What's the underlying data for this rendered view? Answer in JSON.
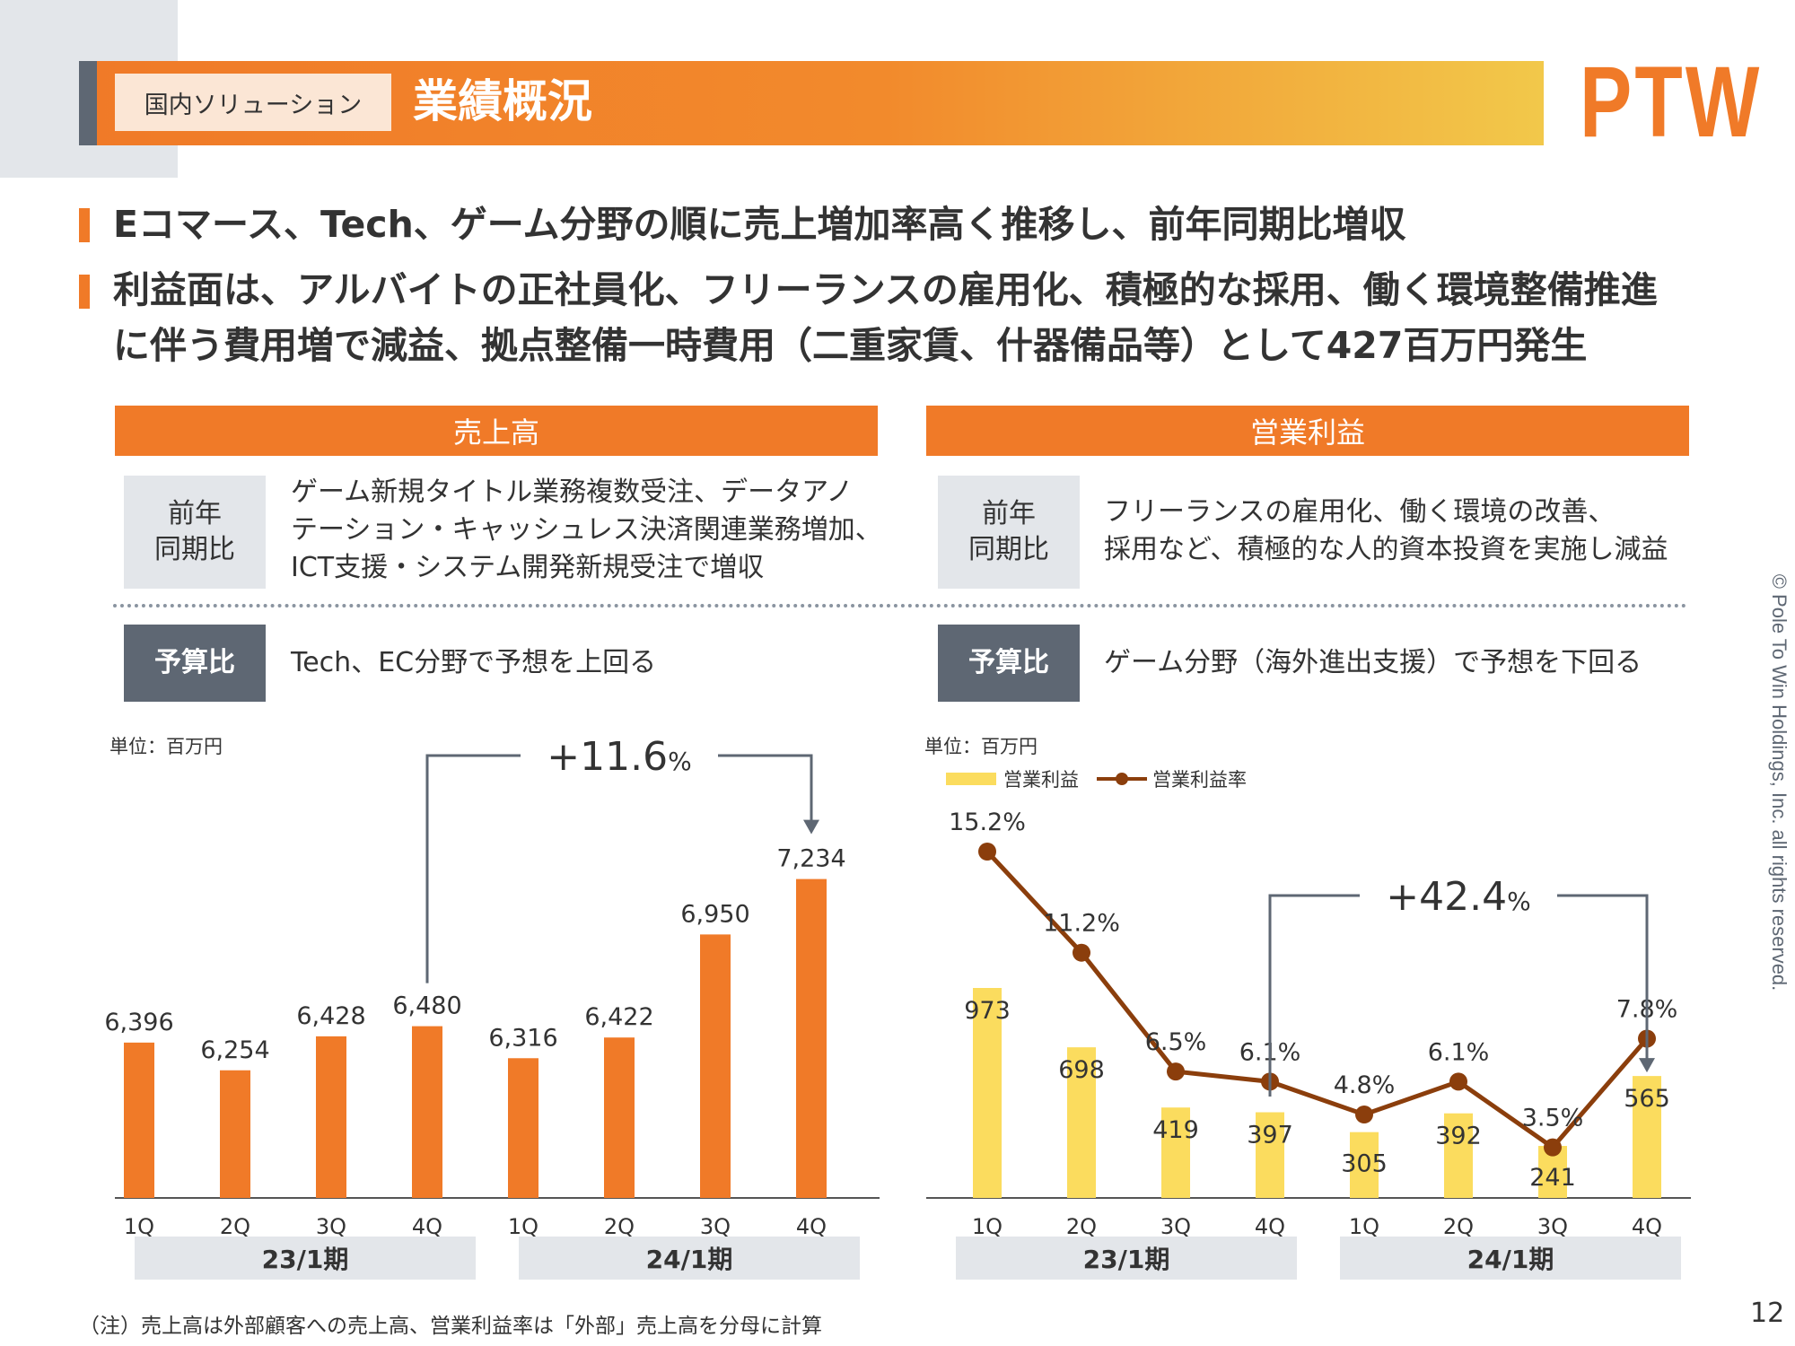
{
  "header": {
    "section_label": "国内ソリューション",
    "title": "業績概況",
    "logo_text": "PTW",
    "accent_color": "#f07a28",
    "accent_gradient_end": "#f2c84a"
  },
  "bullets": [
    {
      "lines": [
        "Eコマース、Tech、ゲーム分野の順に売上増加率高く推移し、前年同期比増収"
      ]
    },
    {
      "lines": [
        "利益面は、アルバイトの正社員化、フリーランスの雇用化、積極的な採用、働く環境整備推進",
        "に伴う費用増で減益、拠点整備一時費用（二重家賃、什器備品等）として427百万円発生"
      ]
    }
  ],
  "panels": {
    "sales": {
      "heading": "売上高",
      "yoy_label": [
        "前年",
        "同期比"
      ],
      "yoy_text": [
        "ゲーム新規タイトル業務複数受注、データアノ",
        "テーション・キャッシュレス決済関連業務増加、",
        "ICT支援・システム開発新規受注で増収"
      ],
      "budget_label": "予算比",
      "budget_text": "Tech、EC分野で予想を上回る"
    },
    "profit": {
      "heading": "営業利益",
      "yoy_label": [
        "前年",
        "同期比"
      ],
      "yoy_text": [
        "フリーランスの雇用化、働く環境の改善、",
        "採用など、積極的な人的資本投資を実施し減益"
      ],
      "budget_label": "予算比",
      "budget_text": "ゲーム分野（海外進出支援）で予想を下回る"
    }
  },
  "chart_data": [
    {
      "type": "bar",
      "unit_label": "単位：百万円",
      "categories": [
        "1Q",
        "2Q",
        "3Q",
        "4Q",
        "1Q",
        "2Q",
        "3Q",
        "4Q"
      ],
      "groups": [
        "23/1期",
        "24/1期"
      ],
      "values": [
        6396,
        6254,
        6428,
        6480,
        6316,
        6422,
        6950,
        7234
      ],
      "value_labels": [
        "6,396",
        "6,254",
        "6,428",
        "6,480",
        "6,316",
        "6,422",
        "6,950",
        "7,234"
      ],
      "bar_color": "#f07a28",
      "ylim": [
        5600,
        7600
      ],
      "annotation": {
        "number": "+11.6",
        "unit": "%",
        "from_index": 3,
        "to_index": 7
      }
    },
    {
      "type": "bar",
      "unit_label": "単位：百万円",
      "legend": {
        "bar": "営業利益",
        "line": "営業利益率"
      },
      "categories": [
        "1Q",
        "2Q",
        "3Q",
        "4Q",
        "1Q",
        "2Q",
        "3Q",
        "4Q"
      ],
      "groups": [
        "23/1期",
        "24/1期"
      ],
      "series": [
        {
          "name": "営業利益",
          "kind": "bar",
          "values": [
            973,
            698,
            419,
            397,
            305,
            392,
            241,
            565
          ],
          "labels": [
            "973",
            "698",
            "419",
            "397",
            "305",
            "392",
            "241",
            "565"
          ],
          "color": "#fbdc5e"
        },
        {
          "name": "営業利益率",
          "kind": "line",
          "values": [
            15.2,
            11.2,
            6.5,
            6.1,
            4.8,
            6.1,
            3.5,
            7.8
          ],
          "labels": [
            "15.2%",
            "11.2%",
            "6.5%",
            "6.1%",
            "4.8%",
            "6.1%",
            "3.5%",
            "7.8%"
          ],
          "color": "#8b3e0c"
        }
      ],
      "bar_ylim": [
        0,
        1300
      ],
      "line_ylim": [
        0,
        20
      ],
      "annotation": {
        "number": "+42.4",
        "unit": "%",
        "from_index": 3,
        "to_index": 7
      }
    }
  ],
  "footnote": "（注）売上高は外部顧客への売上高、営業利益率は「外部」売上高を分母に計算",
  "page_number": "12",
  "copyright": "© Pole To Win Holdings, Inc. all rights reserved."
}
